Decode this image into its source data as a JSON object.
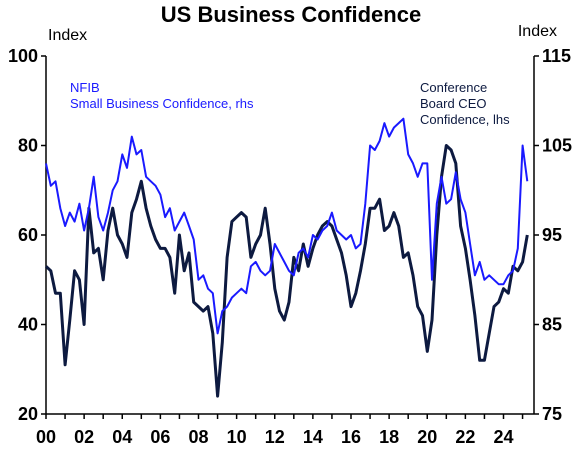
{
  "chart_data": {
    "type": "line",
    "title": "US Business Confidence",
    "left_axis": {
      "unit_label": "Index",
      "ylim": [
        20,
        100
      ],
      "ticks": [
        "20",
        "40",
        "60",
        "80",
        "100"
      ]
    },
    "right_axis": {
      "unit_label": "Index",
      "ylim": [
        75,
        115
      ],
      "ticks": [
        "75",
        "85",
        "95",
        "105",
        "115"
      ]
    },
    "x_axis": {
      "xlim": [
        2000,
        2025.6
      ],
      "ticks": [
        "00",
        "02",
        "04",
        "06",
        "08",
        "10",
        "12",
        "14",
        "16",
        "18",
        "20",
        "22",
        "24"
      ]
    },
    "grid": false,
    "series": [
      {
        "name": "NFIB Small Business Confidence, rhs",
        "legend_lines": [
          "NFIB",
          "Small Business Confidence, rhs"
        ],
        "axis": "right",
        "color": "#1a1aff",
        "x": [
          2000.0,
          2000.25,
          2000.5,
          2000.75,
          2001.0,
          2001.25,
          2001.5,
          2001.75,
          2002.0,
          2002.25,
          2002.5,
          2002.75,
          2003.0,
          2003.25,
          2003.5,
          2003.75,
          2004.0,
          2004.25,
          2004.5,
          2004.75,
          2005.0,
          2005.25,
          2005.5,
          2005.75,
          2006.0,
          2006.25,
          2006.5,
          2006.75,
          2007.0,
          2007.25,
          2007.5,
          2007.75,
          2008.0,
          2008.25,
          2008.5,
          2008.75,
          2009.0,
          2009.25,
          2009.5,
          2009.75,
          2010.0,
          2010.25,
          2010.5,
          2010.75,
          2011.0,
          2011.25,
          2011.5,
          2011.75,
          2012.0,
          2012.25,
          2012.5,
          2012.75,
          2013.0,
          2013.25,
          2013.5,
          2013.75,
          2014.0,
          2014.25,
          2014.5,
          2014.75,
          2015.0,
          2015.25,
          2015.5,
          2015.75,
          2016.0,
          2016.25,
          2016.5,
          2016.75,
          2017.0,
          2017.25,
          2017.5,
          2017.75,
          2018.0,
          2018.25,
          2018.5,
          2018.75,
          2019.0,
          2019.25,
          2019.5,
          2019.75,
          2020.0,
          2020.25,
          2020.5,
          2020.75,
          2021.0,
          2021.25,
          2021.5,
          2021.75,
          2022.0,
          2022.25,
          2022.5,
          2022.75,
          2023.0,
          2023.25,
          2023.5,
          2023.75,
          2024.0,
          2024.25,
          2024.5,
          2024.75,
          2025.0,
          2025.25
        ],
        "values": [
          103.0,
          100.5,
          101.0,
          98.0,
          96.0,
          97.5,
          96.5,
          98.5,
          95.5,
          98.0,
          101.5,
          97.0,
          95.5,
          97.5,
          100.0,
          101.0,
          104.0,
          102.5,
          106.0,
          104.0,
          104.5,
          101.5,
          101.0,
          100.5,
          99.5,
          97.0,
          98.0,
          95.5,
          96.5,
          97.5,
          96.0,
          94.5,
          90.0,
          90.5,
          89.0,
          88.5,
          84.0,
          86.5,
          87.0,
          88.0,
          88.5,
          89.0,
          88.5,
          91.5,
          92.0,
          91.0,
          90.5,
          91.0,
          94.0,
          93.0,
          92.0,
          91.0,
          90.5,
          93.0,
          93.5,
          92.5,
          95.0,
          94.5,
          95.5,
          96.0,
          97.5,
          95.5,
          95.0,
          94.5,
          95.0,
          93.5,
          94.0,
          98.5,
          105.0,
          104.5,
          105.5,
          107.5,
          106.0,
          107.0,
          107.5,
          108.0,
          104.0,
          103.0,
          101.5,
          103.0,
          103.0,
          90.0,
          98.5,
          101.5,
          98.5,
          99.0,
          102.0,
          99.0,
          97.5,
          94.0,
          90.5,
          92.0,
          90.0,
          90.5,
          90.0,
          89.5,
          89.5,
          90.5,
          91.0,
          93.5,
          105.0,
          101.0
        ]
      },
      {
        "name": "Conference Board CEO Confidence, lhs",
        "legend_lines": [
          "Conference",
          "Board CEO",
          "Confidence, lhs"
        ],
        "axis": "left",
        "color": "#0d1a40",
        "x": [
          2000.0,
          2000.25,
          2000.5,
          2000.75,
          2001.0,
          2001.25,
          2001.5,
          2001.75,
          2002.0,
          2002.25,
          2002.5,
          2002.75,
          2003.0,
          2003.25,
          2003.5,
          2003.75,
          2004.0,
          2004.25,
          2004.5,
          2004.75,
          2005.0,
          2005.25,
          2005.5,
          2005.75,
          2006.0,
          2006.25,
          2006.5,
          2006.75,
          2007.0,
          2007.25,
          2007.5,
          2007.75,
          2008.0,
          2008.25,
          2008.5,
          2008.75,
          2009.0,
          2009.25,
          2009.5,
          2009.75,
          2010.0,
          2010.25,
          2010.5,
          2010.75,
          2011.0,
          2011.25,
          2011.5,
          2011.75,
          2012.0,
          2012.25,
          2012.5,
          2012.75,
          2013.0,
          2013.25,
          2013.5,
          2013.75,
          2014.0,
          2014.25,
          2014.5,
          2014.75,
          2015.0,
          2015.25,
          2015.5,
          2015.75,
          2016.0,
          2016.25,
          2016.5,
          2016.75,
          2017.0,
          2017.25,
          2017.5,
          2017.75,
          2018.0,
          2018.25,
          2018.5,
          2018.75,
          2019.0,
          2019.25,
          2019.5,
          2019.75,
          2020.0,
          2020.25,
          2020.5,
          2020.75,
          2021.0,
          2021.25,
          2021.5,
          2021.75,
          2022.0,
          2022.25,
          2022.5,
          2022.75,
          2023.0,
          2023.25,
          2023.5,
          2023.75,
          2024.0,
          2024.25,
          2024.5,
          2024.75,
          2025.0,
          2025.25
        ],
        "values": [
          53,
          52,
          47,
          47,
          31,
          41,
          52,
          50,
          40,
          66,
          56,
          57,
          50,
          61,
          66,
          60,
          58,
          55,
          65,
          68,
          72,
          66,
          62,
          59,
          57,
          57,
          55,
          47,
          60,
          52,
          56,
          45,
          44,
          43,
          44,
          38,
          24,
          36,
          55,
          63,
          64,
          65,
          64,
          55,
          58,
          60,
          66,
          58,
          48,
          43,
          41,
          45,
          55,
          52,
          58,
          53,
          57,
          60,
          62,
          63,
          62,
          59,
          56,
          51,
          44,
          47,
          52,
          58,
          66,
          66,
          68,
          61,
          62,
          65,
          62,
          55,
          56,
          51,
          44,
          42,
          34,
          41,
          60,
          73,
          80,
          79,
          76,
          62,
          57,
          50,
          42,
          32,
          32,
          38,
          44,
          45,
          48,
          47,
          53,
          52,
          54,
          60
        ]
      }
    ]
  }
}
